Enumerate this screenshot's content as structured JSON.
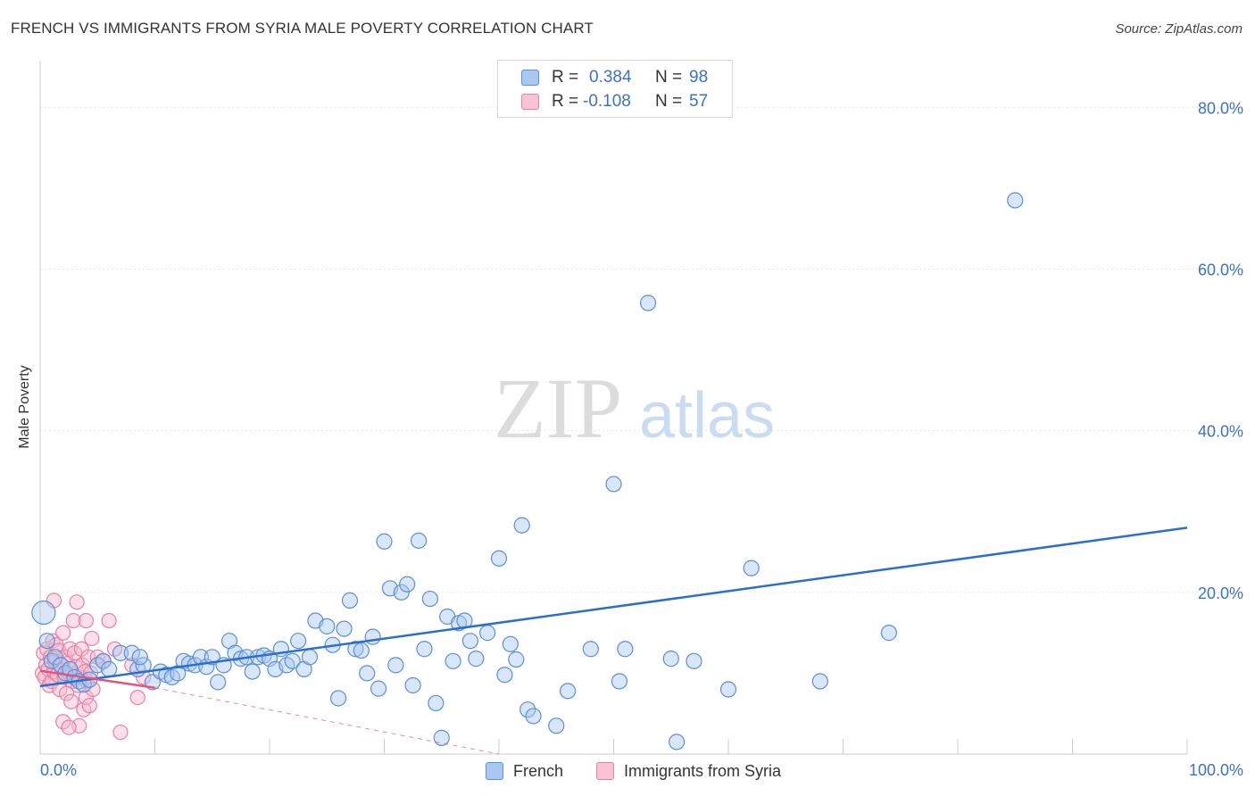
{
  "header": {
    "title": "FRENCH VS IMMIGRANTS FROM SYRIA MALE POVERTY CORRELATION CHART",
    "source": "Source: ZipAtlas.com"
  },
  "watermark": {
    "zip": "ZIP",
    "atlas": "atlas"
  },
  "legend": {
    "rows": [
      {
        "r_label": "R =",
        "r_value": "0.384",
        "n_label": "N =",
        "n_value": "98"
      },
      {
        "r_label": "R =",
        "r_value": "-0.108",
        "n_label": "N =",
        "n_value": "57"
      }
    ],
    "bottom": [
      {
        "label": "French"
      },
      {
        "label": "Immigrants from Syria"
      }
    ]
  },
  "colors": {
    "french_fill": "#a9c8f0",
    "french_stroke": "#5b8fd6",
    "french_line": "#2a6fd0",
    "syria_fill": "#f8b8cc",
    "syria_stroke": "#e880a2",
    "syria_line": "#e0557f",
    "tick_label": "#3a72c8",
    "grid": "#e6e6e6"
  },
  "chart_data": {
    "type": "scatter",
    "title": "FRENCH VS IMMIGRANTS FROM SYRIA MALE POVERTY CORRELATION CHART",
    "xlabel": "",
    "ylabel": "Male Poverty",
    "xlim": [
      0,
      100
    ],
    "ylim": [
      0,
      85
    ],
    "x_tick_labels": [
      "0.0%",
      "100.0%"
    ],
    "y_ticks": [
      20,
      40,
      60,
      80
    ],
    "y_tick_labels": [
      "20.0%",
      "40.0%",
      "60.0%",
      "80.0%"
    ],
    "grid": true,
    "legend_position": "top-center",
    "series": [
      {
        "name": "French",
        "r": 0.384,
        "n": 98,
        "trend": {
          "x": [
            0.0,
            100.0
          ],
          "y": [
            8.4,
            28.0
          ]
        },
        "points": [
          [
            0.3,
            17.5
          ],
          [
            0.6,
            14.0
          ],
          [
            1.0,
            11.5
          ],
          [
            1.3,
            12.0
          ],
          [
            1.8,
            11.0
          ],
          [
            2.2,
            10.0
          ],
          [
            2.6,
            10.5
          ],
          [
            3.0,
            9.5
          ],
          [
            3.4,
            9.0
          ],
          [
            3.8,
            8.6
          ],
          [
            4.3,
            9.2
          ],
          [
            5.0,
            11.0
          ],
          [
            5.5,
            11.5
          ],
          [
            6.0,
            10.5
          ],
          [
            7.0,
            12.5
          ],
          [
            8.0,
            12.5
          ],
          [
            8.5,
            10.5
          ],
          [
            9.0,
            11.0
          ],
          [
            9.8,
            8.9
          ],
          [
            10.5,
            10.2
          ],
          [
            11.0,
            9.8
          ],
          [
            11.5,
            9.5
          ],
          [
            12.0,
            10.0
          ],
          [
            12.5,
            11.5
          ],
          [
            13.0,
            11.2
          ],
          [
            13.5,
            11.0
          ],
          [
            14.0,
            12.0
          ],
          [
            14.5,
            10.8
          ],
          [
            15.0,
            12.0
          ],
          [
            15.5,
            8.9
          ],
          [
            16.0,
            11.0
          ],
          [
            16.5,
            14.0
          ],
          [
            17.0,
            12.5
          ],
          [
            17.5,
            11.8
          ],
          [
            18.0,
            12.0
          ],
          [
            18.5,
            10.2
          ],
          [
            19.0,
            12.0
          ],
          [
            19.5,
            12.2
          ],
          [
            20.0,
            11.8
          ],
          [
            20.5,
            10.5
          ],
          [
            21.0,
            13.0
          ],
          [
            21.5,
            11.0
          ],
          [
            22.0,
            11.5
          ],
          [
            22.5,
            14.0
          ],
          [
            23.0,
            10.5
          ],
          [
            23.5,
            12.0
          ],
          [
            24.0,
            16.5
          ],
          [
            25.0,
            15.8
          ],
          [
            25.5,
            13.5
          ],
          [
            26.0,
            6.9
          ],
          [
            26.5,
            15.5
          ],
          [
            27.0,
            19.0
          ],
          [
            27.5,
            13.0
          ],
          [
            28.0,
            12.8
          ],
          [
            28.5,
            10.0
          ],
          [
            29.0,
            14.5
          ],
          [
            29.5,
            8.1
          ],
          [
            30.0,
            26.3
          ],
          [
            30.5,
            20.5
          ],
          [
            31.0,
            11.0
          ],
          [
            31.5,
            20.0
          ],
          [
            32.0,
            21.0
          ],
          [
            32.5,
            8.5
          ],
          [
            33.0,
            26.4
          ],
          [
            33.5,
            13.0
          ],
          [
            34.0,
            19.2
          ],
          [
            34.5,
            6.3
          ],
          [
            35.0,
            2.0
          ],
          [
            35.5,
            17.0
          ],
          [
            36.0,
            11.5
          ],
          [
            36.5,
            16.2
          ],
          [
            37.0,
            16.5
          ],
          [
            37.5,
            14.0
          ],
          [
            38.0,
            11.8
          ],
          [
            39.0,
            15.0
          ],
          [
            40.0,
            24.2
          ],
          [
            40.5,
            9.8
          ],
          [
            41.0,
            13.6
          ],
          [
            41.5,
            11.7
          ],
          [
            42.0,
            28.3
          ],
          [
            42.5,
            5.5
          ],
          [
            43.0,
            4.7
          ],
          [
            45.0,
            3.5
          ],
          [
            46.0,
            7.8
          ],
          [
            48.0,
            13.0
          ],
          [
            50.0,
            33.4
          ],
          [
            50.5,
            9.0
          ],
          [
            51.0,
            13.0
          ],
          [
            53.0,
            55.8
          ],
          [
            55.0,
            11.8
          ],
          [
            55.5,
            1.5
          ],
          [
            57.0,
            11.5
          ],
          [
            62.0,
            23.0
          ],
          [
            68.0,
            9.0
          ],
          [
            74.0,
            15.0
          ],
          [
            85.0,
            68.5
          ],
          [
            60.0,
            8.0
          ],
          [
            8.7,
            12.0
          ]
        ]
      },
      {
        "name": "Immigrants from Syria",
        "r": -0.108,
        "n": 57,
        "trend": {
          "x": [
            0.0,
            10.0
          ],
          "y": [
            10.3,
            8.2
          ]
        },
        "trend_extension": {
          "x": [
            10.0,
            40.0
          ],
          "y": [
            8.2,
            0.0
          ]
        },
        "points": [
          [
            0.2,
            10.0
          ],
          [
            0.3,
            12.5
          ],
          [
            0.4,
            9.5
          ],
          [
            0.5,
            11.0
          ],
          [
            0.6,
            13.0
          ],
          [
            0.7,
            10.5
          ],
          [
            0.8,
            8.5
          ],
          [
            0.9,
            12.0
          ],
          [
            1.0,
            9.0
          ],
          [
            1.1,
            14.0
          ],
          [
            1.2,
            10.2
          ],
          [
            1.3,
            11.5
          ],
          [
            1.4,
            13.5
          ],
          [
            1.5,
            9.8
          ],
          [
            1.6,
            12.8
          ],
          [
            1.7,
            8.0
          ],
          [
            1.8,
            11.0
          ],
          [
            1.9,
            10.5
          ],
          [
            2.0,
            15.0
          ],
          [
            2.1,
            9.5
          ],
          [
            2.2,
            12.0
          ],
          [
            2.3,
            7.5
          ],
          [
            2.4,
            11.2
          ],
          [
            2.5,
            10.0
          ],
          [
            2.6,
            13.0
          ],
          [
            2.7,
            6.5
          ],
          [
            2.8,
            9.0
          ],
          [
            2.9,
            16.5
          ],
          [
            3.0,
            12.5
          ],
          [
            3.1,
            10.8
          ],
          [
            3.2,
            18.8
          ],
          [
            3.3,
            8.5
          ],
          [
            3.4,
            3.5
          ],
          [
            3.5,
            9.5
          ],
          [
            3.6,
            13.0
          ],
          [
            3.7,
            11.0
          ],
          [
            3.8,
            5.5
          ],
          [
            3.9,
            10.2
          ],
          [
            4.0,
            7.0
          ],
          [
            4.1,
            9.0
          ],
          [
            4.2,
            12.0
          ],
          [
            4.3,
            6.0
          ],
          [
            4.4,
            10.0
          ],
          [
            4.5,
            14.3
          ],
          [
            4.6,
            8.0
          ],
          [
            5.0,
            12.0
          ],
          [
            5.5,
            11.5
          ],
          [
            6.0,
            16.5
          ],
          [
            6.5,
            13.0
          ],
          [
            7.0,
            2.7
          ],
          [
            8.0,
            11.0
          ],
          [
            8.5,
            7.0
          ],
          [
            9.0,
            9.5
          ],
          [
            1.2,
            19.0
          ],
          [
            2.0,
            4.0
          ],
          [
            2.5,
            3.3
          ],
          [
            4.0,
            16.5
          ]
        ]
      }
    ]
  }
}
